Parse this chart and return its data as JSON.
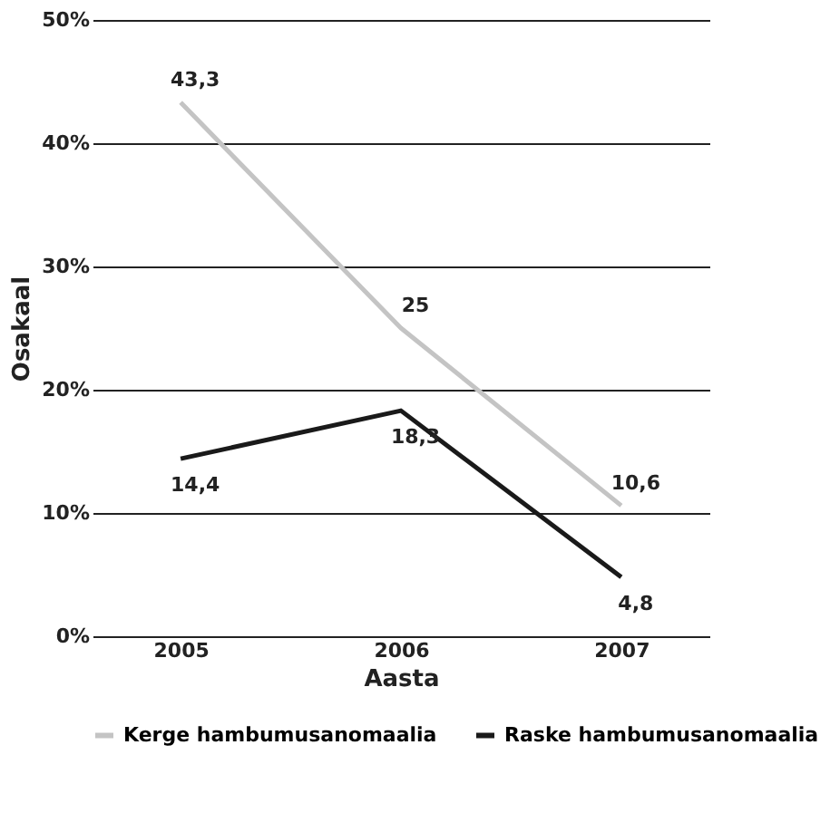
{
  "chart_data": {
    "type": "line",
    "xlabel": "Aasta",
    "ylabel": "Osakaal",
    "categories": [
      "2005",
      "2006",
      "2007"
    ],
    "series": [
      {
        "name": "Kerge hambumusanomaalia",
        "color": "#c4c4c4",
        "values": [
          43.3,
          25,
          10.6
        ],
        "value_labels": [
          "43,3",
          "25",
          "10,6"
        ]
      },
      {
        "name": "Raske hambumusanomaalia",
        "color": "#1a1a1a",
        "values": [
          14.4,
          18.3,
          4.8
        ],
        "value_labels": [
          "14,4",
          "18,3",
          "4,8"
        ]
      }
    ],
    "ylim": [
      0,
      50
    ],
    "yticks": [
      {
        "value": 0,
        "label": "0%"
      },
      {
        "value": 10,
        "label": "10%"
      },
      {
        "value": 20,
        "label": "20%"
      },
      {
        "value": 30,
        "label": "30%"
      },
      {
        "value": 40,
        "label": "40%"
      },
      {
        "value": 50,
        "label": "50%"
      }
    ],
    "grid": "y",
    "legend": "bottom",
    "marker": "none",
    "line_style": "solid"
  }
}
